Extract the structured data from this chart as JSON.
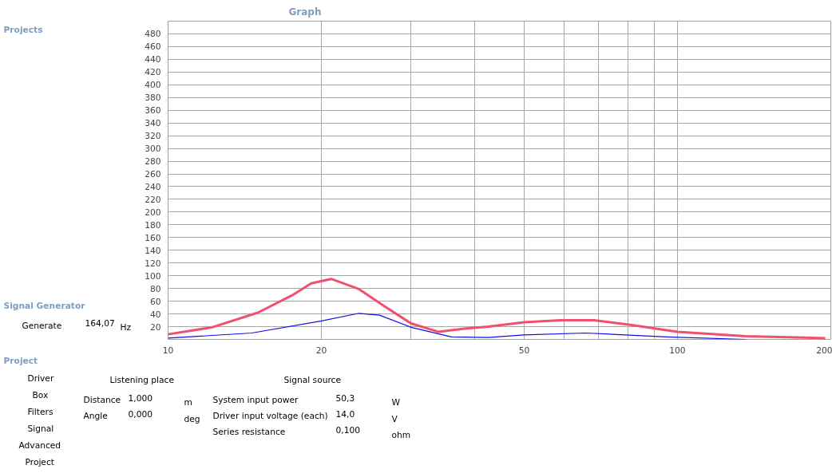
{
  "chart_data": {
    "type": "line",
    "title": "Graph",
    "xlim": [
      10,
      200
    ],
    "log": "x",
    "xticks": [
      10,
      20,
      {
        "value": 30,
        "label": null
      },
      {
        "value": 40,
        "label": null
      },
      50,
      {
        "value": 60,
        "label": null
      },
      {
        "value": 70,
        "label": null
      },
      {
        "value": 80,
        "label": null
      },
      {
        "value": 90,
        "label": null
      },
      100,
      200
    ],
    "ylim": [
      0,
      500
    ],
    "yticks": [
      20,
      40,
      60,
      80,
      100,
      120,
      140,
      160,
      180,
      200,
      220,
      240,
      260,
      280,
      300,
      320,
      340,
      360,
      380,
      400,
      420,
      440,
      460,
      480
    ],
    "grid": true,
    "line_style": "solid",
    "marker": "none",
    "series": [
      {
        "color": "#f0506e",
        "x": [
          10,
          12.2,
          15,
          17.5,
          19.1,
          20.9,
          23.7,
          26.6,
          30,
          33.9,
          38.2,
          42.5,
          50,
          58.9,
          68.6,
          80.8,
          100,
          136,
          195
        ],
        "values": [
          8,
          19,
          42,
          69,
          88,
          95,
          79,
          52,
          25,
          12,
          17,
          20,
          27,
          30,
          30,
          23,
          12,
          5,
          2
        ]
      },
      {
        "color": "#1010e0",
        "x": [
          10,
          14.6,
          20,
          23.7,
          26,
          30,
          36,
          42.5,
          50,
          66,
          95,
          136
        ],
        "values": [
          2,
          10,
          29,
          41,
          38,
          19,
          4,
          3,
          7,
          10,
          4,
          0
        ]
      }
    ],
    "annotations": [
      "Projects",
      "Signal Generator",
      "Generate",
      "164,07",
      "Hz",
      "Project",
      "Driver",
      "Box",
      "Filters",
      "Signal",
      "Advanced",
      "Project",
      "Listening place",
      "Signal source",
      "Distance",
      "1,000",
      "m",
      "Angle",
      "0,000",
      "deg",
      "System input power",
      "50,3",
      "W",
      "Driver input voltage (each)",
      "14,0",
      "V",
      "Series resistance",
      "0,100",
      "ohm"
    ]
  }
}
